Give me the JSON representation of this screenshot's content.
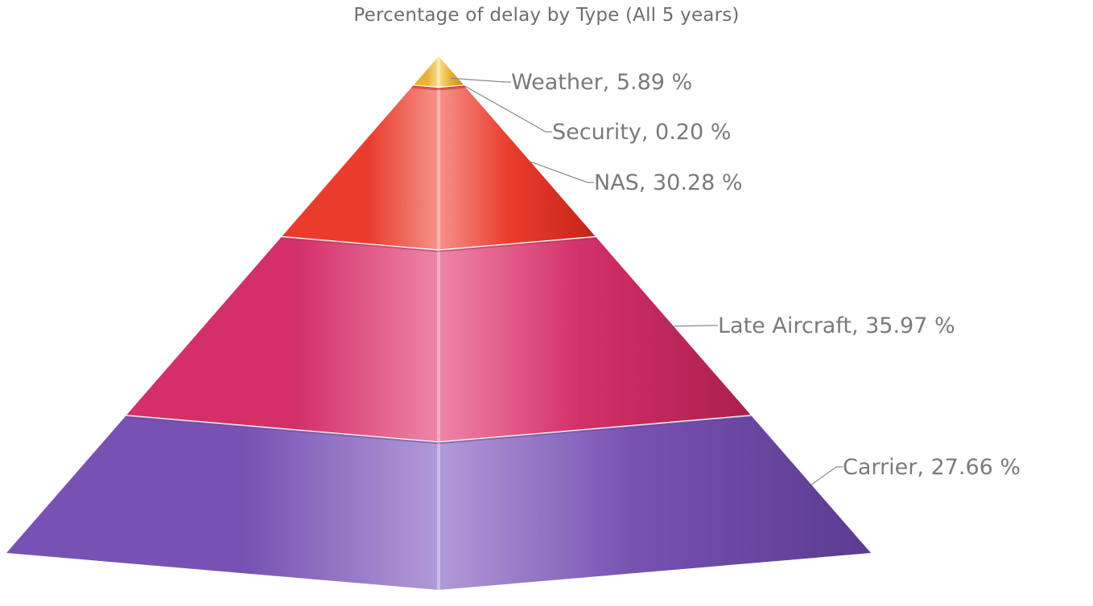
{
  "chart_data": {
    "type": "pyramid",
    "title": "Percentage of delay by Type (All 5 years)",
    "unit": "%",
    "segments_top_to_bottom": [
      {
        "name": "Weather",
        "value": 5.89,
        "label": "Weather, 5.89 %",
        "color": "#e8b23a",
        "light": "#f9df8f",
        "dark": "#c98a14"
      },
      {
        "name": "Security",
        "value": 0.2,
        "label": "Security, 0.20 %",
        "color": "#e0503a",
        "light": "#f59a85",
        "dark": "#c1281a"
      },
      {
        "name": "NAS",
        "value": 30.28,
        "label": "NAS, 30.28 %",
        "color": "#ea3c2c",
        "light": "#f6928a",
        "dark": "#c3261a"
      },
      {
        "name": "Late Aircraft",
        "value": 35.97,
        "label": "Late Aircraft, 35.97 %",
        "color": "#d3306a",
        "light": "#ee86a8",
        "dark": "#aa1f4e"
      },
      {
        "name": "Carrier",
        "value": 27.66,
        "label": "Carrier, 27.66 %",
        "color": "#7752b2",
        "light": "#b19ad8",
        "dark": "#5b3b90"
      }
    ]
  }
}
